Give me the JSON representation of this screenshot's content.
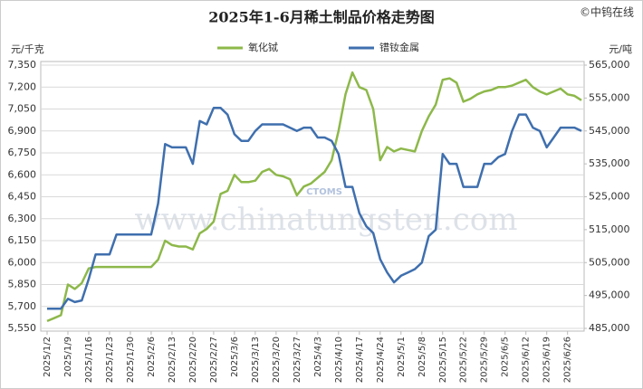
{
  "chart_data": {
    "type": "line",
    "title": "2025年1-6月稀土制品价格走势图",
    "source": "©中钨在线",
    "y_unit": "元/千克",
    "y2_unit": "元/吨",
    "watermark": "www.chinatungsten.com",
    "logo": "CTOMS",
    "legend": "top",
    "grid": true,
    "categories": [
      "2025/1/2",
      null,
      null,
      "2025/1/9",
      null,
      null,
      "2025/1/16",
      null,
      null,
      "2025/1/23",
      null,
      null,
      "2025/1/30",
      null,
      null,
      "2025/2/6",
      null,
      null,
      "2025/2/13",
      null,
      null,
      "2025/2/20",
      null,
      null,
      "2025/2/27",
      null,
      null,
      "2025/3/6",
      null,
      null,
      "2025/3/13",
      null,
      null,
      "2025/3/20",
      null,
      null,
      "2025/3/27",
      null,
      null,
      "2025/4/3",
      null,
      null,
      "2025/4/10",
      null,
      null,
      "2025/4/17",
      null,
      null,
      "2025/4/24",
      null,
      null,
      "2025/5/1",
      null,
      null,
      "2025/5/8",
      null,
      null,
      "2025/5/15",
      null,
      null,
      "2025/5/22",
      null,
      null,
      "2025/5/29",
      null,
      null,
      "2025/6/5",
      null,
      null,
      "2025/6/12",
      null,
      null,
      "2025/6/19",
      null,
      null,
      "2025/6/26",
      null,
      null
    ],
    "series": [
      {
        "name": "氧化铽",
        "color": "#8db84a",
        "axis": "y",
        "values": [
          5600,
          5620,
          5640,
          5850,
          5820,
          5860,
          5960,
          5970,
          5970,
          5970,
          5970,
          5970,
          5970,
          5970,
          5970,
          5970,
          6020,
          6150,
          6120,
          6110,
          6110,
          6090,
          6200,
          6230,
          6280,
          6470,
          6490,
          6600,
          6550,
          6550,
          6560,
          6620,
          6640,
          6600,
          6590,
          6570,
          6460,
          6520,
          6540,
          6580,
          6620,
          6700,
          6900,
          7150,
          7300,
          7200,
          7180,
          7050,
          6700,
          6790,
          6760,
          6780,
          6770,
          6760,
          6900,
          7000,
          7080,
          7250,
          7260,
          7230,
          7100,
          7120,
          7150,
          7170,
          7180,
          7200,
          7200,
          7210,
          7230,
          7250,
          7200,
          7170,
          7150,
          7170,
          7190,
          7150,
          7140,
          7110
        ]
      },
      {
        "name": "镨钕金属",
        "color": "#3f6fae",
        "axis": "y2",
        "values": [
          491000,
          491000,
          491000,
          494000,
          493000,
          493500,
          500000,
          507500,
          507500,
          507500,
          513500,
          513500,
          513500,
          513500,
          513500,
          513500,
          523000,
          541000,
          540000,
          540000,
          540000,
          535000,
          548000,
          547000,
          552000,
          552000,
          550000,
          544000,
          542000,
          542000,
          545000,
          547000,
          547000,
          547000,
          547000,
          546000,
          545000,
          546000,
          546000,
          543000,
          543000,
          542000,
          538000,
          528000,
          528000,
          520000,
          516000,
          514000,
          506000,
          502000,
          499000,
          501000,
          502000,
          503000,
          505000,
          513000,
          515000,
          538000,
          535000,
          535000,
          528000,
          528000,
          528000,
          535000,
          535000,
          537000,
          538000,
          545000,
          550000,
          550000,
          546000,
          545000,
          540000,
          543000,
          546000,
          546000,
          546000,
          545000
        ]
      }
    ],
    "ylim": [
      5550,
      7350
    ],
    "yticks": [
      {
        "value": 5550,
        "label": "5,550"
      },
      {
        "value": 5700,
        "label": "5,700"
      },
      {
        "value": 5850,
        "label": "5,850"
      },
      {
        "value": 6000,
        "label": "6,000"
      },
      {
        "value": 6150,
        "label": "6,150"
      },
      {
        "value": 6300,
        "label": "6,300"
      },
      {
        "value": 6450,
        "label": "6,450"
      },
      {
        "value": 6600,
        "label": "6,600"
      },
      {
        "value": 6750,
        "label": "6,750"
      },
      {
        "value": 6900,
        "label": "6,900"
      },
      {
        "value": 7050,
        "label": "7,050"
      },
      {
        "value": 7200,
        "label": "7,200"
      },
      {
        "value": 7350,
        "label": "7,350"
      }
    ],
    "y2lim": [
      485000,
      565000
    ],
    "y2ticks": [
      {
        "value": 485000,
        "label": "485,000"
      },
      {
        "value": 495000,
        "label": "495,000"
      },
      {
        "value": 505000,
        "label": "505,000"
      },
      {
        "value": 515000,
        "label": "515,000"
      },
      {
        "value": 525000,
        "label": "525,000"
      },
      {
        "value": 535000,
        "label": "535,000"
      },
      {
        "value": 545000,
        "label": "545,000"
      },
      {
        "value": 555000,
        "label": "555,000"
      },
      {
        "value": 565000,
        "label": "565,000"
      }
    ]
  }
}
